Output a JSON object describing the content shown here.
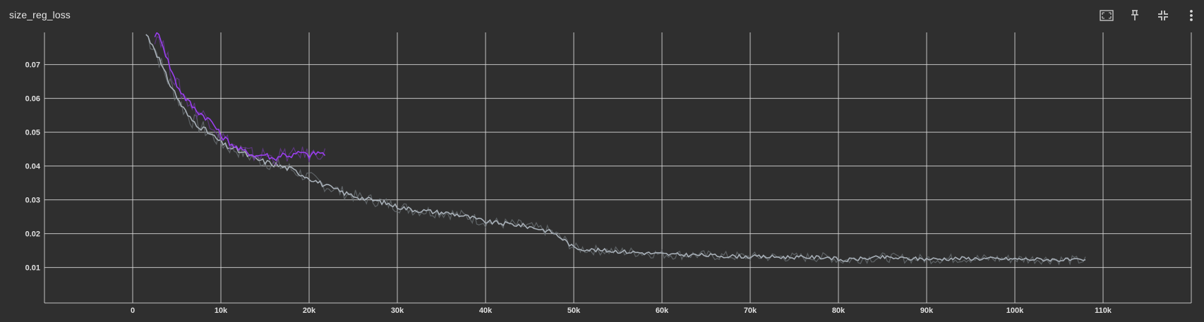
{
  "card": {
    "title": "size_reg_loss"
  },
  "toolbar": [
    {
      "name": "fit-domain-icon",
      "label": ""
    },
    {
      "name": "pin-icon",
      "label": ""
    },
    {
      "name": "collapse-icon",
      "label": ""
    },
    {
      "name": "more-vert-icon",
      "label": ""
    }
  ],
  "colors": {
    "background": "#2f2f2f",
    "grid": "#dcdcdc",
    "series_gray_smoothed": "#a8b0b8",
    "series_gray_raw": "#6f757a",
    "series_purple_smoothed": "#9b3ff0",
    "series_purple_raw": "#6c3a9a"
  },
  "chart_data": {
    "type": "line",
    "title": "size_reg_loss",
    "xlabel": "",
    "ylabel": "",
    "xlim": [
      -10000,
      120000
    ],
    "ylim": [
      -0.0005,
      0.0795
    ],
    "x_ticks": [
      0,
      10000,
      20000,
      30000,
      40000,
      50000,
      60000,
      70000,
      80000,
      90000,
      100000,
      110000
    ],
    "x_tick_labels": [
      "0",
      "10k",
      "20k",
      "30k",
      "40k",
      "50k",
      "60k",
      "70k",
      "80k",
      "90k",
      "100k",
      "110k"
    ],
    "y_ticks": [
      0.01,
      0.02,
      0.03,
      0.04,
      0.05,
      0.06,
      0.07
    ],
    "y_tick_labels": [
      "0.01",
      "0.02",
      "0.03",
      "0.04",
      "0.05",
      "0.06",
      "0.07"
    ],
    "grid": true,
    "legend": "none",
    "series": [
      {
        "color": "#a8b0b8",
        "raw_color": "#6f757a",
        "x": [
          1500,
          2500,
          3500,
          4500,
          5500,
          6500,
          7500,
          8500,
          9500,
          10500,
          12000,
          14000,
          16000,
          18000,
          20000,
          22000,
          24000,
          26000,
          28000,
          30000,
          32000,
          34000,
          36000,
          38000,
          40000,
          42000,
          44000,
          46000,
          47500,
          49000,
          50000,
          52000,
          55000,
          58000,
          61000,
          64000,
          67000,
          70000,
          73000,
          76000,
          79000,
          80500,
          82000,
          85000,
          88000,
          91000,
          94000,
          97000,
          100000,
          103000,
          106000,
          108000
        ],
        "y": [
          0.079,
          0.075,
          0.068,
          0.063,
          0.058,
          0.054,
          0.052,
          0.05,
          0.048,
          0.046,
          0.0445,
          0.042,
          0.0405,
          0.039,
          0.0365,
          0.034,
          0.032,
          0.0305,
          0.0295,
          0.028,
          0.027,
          0.0265,
          0.026,
          0.025,
          0.0235,
          0.023,
          0.0225,
          0.0215,
          0.0205,
          0.018,
          0.0158,
          0.0152,
          0.0148,
          0.0143,
          0.0138,
          0.0137,
          0.0134,
          0.0132,
          0.0131,
          0.013,
          0.013,
          0.012,
          0.0125,
          0.013,
          0.0126,
          0.0125,
          0.0127,
          0.0126,
          0.0125,
          0.0124,
          0.0122,
          0.012
        ]
      },
      {
        "color": "#9b3ff0",
        "raw_color": "#6c3a9a",
        "x": [
          2500,
          3200,
          4000,
          5000,
          6000,
          7000,
          8000,
          9000,
          10000,
          11000,
          12000,
          13000,
          14000,
          15000,
          16000,
          17000,
          18000,
          19000,
          20000,
          21000,
          21800
        ],
        "y": [
          0.079,
          0.078,
          0.071,
          0.064,
          0.06,
          0.057,
          0.055,
          0.053,
          0.049,
          0.047,
          0.045,
          0.044,
          0.043,
          0.0435,
          0.042,
          0.0435,
          0.043,
          0.044,
          0.043,
          0.044,
          0.0435
        ]
      }
    ]
  }
}
